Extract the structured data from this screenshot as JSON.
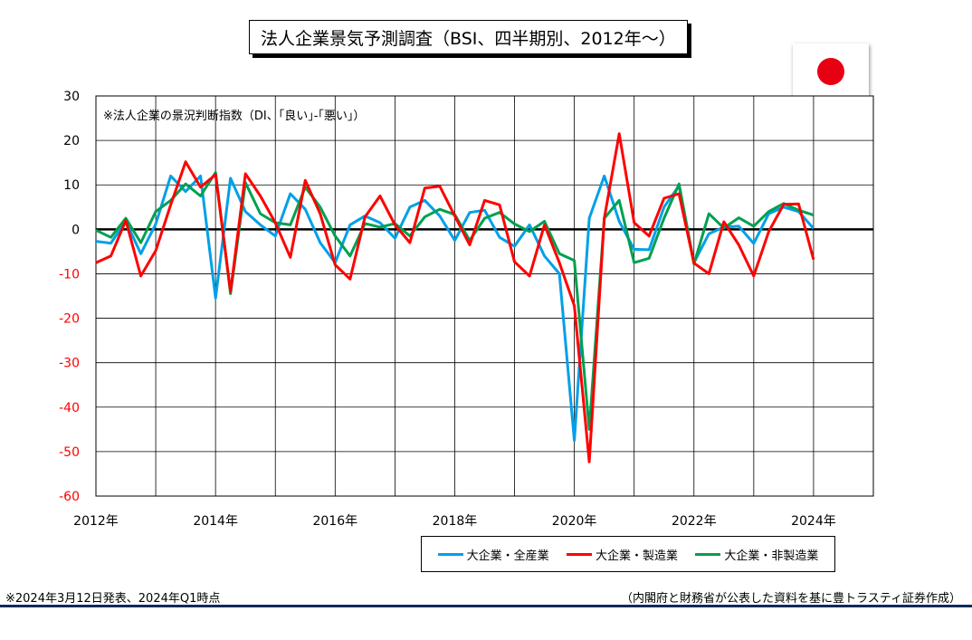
{
  "title": "法人企業景気予測調査（BSI、四半期別、2012年～）",
  "flag_icon": "japan-flag-icon",
  "footnote_left": "※2024年3月12日発表、2024年Q1時点",
  "footnote_right": "（内閣府と財務省が公表した資料を基に豊トラスティ証券作成）",
  "chart_data": {
    "type": "line",
    "annotation": "※法人企業の景況判断指数（DI、｢良い｣-｢悪い｣）",
    "ylim": [
      -60,
      30
    ],
    "yticks": [
      30,
      20,
      10,
      0,
      -10,
      -20,
      -30,
      -40,
      -50,
      -60
    ],
    "xlim": [
      2012,
      2025
    ],
    "xticks": [
      {
        "value": 2012,
        "label": "2012年"
      },
      {
        "value": 2014,
        "label": "2014年"
      },
      {
        "value": 2016,
        "label": "2016年"
      },
      {
        "value": 2018,
        "label": "2018年"
      },
      {
        "value": 2020,
        "label": "2020年"
      },
      {
        "value": 2022,
        "label": "2022年"
      },
      {
        "value": 2024,
        "label": "2024年"
      }
    ],
    "grid": true,
    "legend_position": "bottom-right",
    "x": [
      "2012Q1",
      "2012Q2",
      "2012Q3",
      "2012Q4",
      "2013Q1",
      "2013Q2",
      "2013Q3",
      "2013Q4",
      "2014Q1",
      "2014Q2",
      "2014Q3",
      "2014Q4",
      "2015Q1",
      "2015Q2",
      "2015Q3",
      "2015Q4",
      "2016Q1",
      "2016Q2",
      "2016Q3",
      "2016Q4",
      "2017Q1",
      "2017Q2",
      "2017Q3",
      "2017Q4",
      "2018Q1",
      "2018Q2",
      "2018Q3",
      "2018Q4",
      "2019Q1",
      "2019Q2",
      "2019Q3",
      "2019Q4",
      "2020Q1",
      "2020Q2",
      "2020Q3",
      "2020Q4",
      "2021Q1",
      "2021Q2",
      "2021Q3",
      "2021Q4",
      "2022Q1",
      "2022Q2",
      "2022Q3",
      "2022Q4",
      "2023Q1",
      "2023Q2",
      "2023Q3",
      "2023Q4",
      "2024Q1"
    ],
    "series": [
      {
        "name": "大企業・全産業",
        "color": "#00a0e9",
        "values": [
          -2.7,
          -3.1,
          1.8,
          -5.5,
          1.2,
          12.0,
          8.5,
          12.0,
          -15.5,
          11.5,
          4.0,
          1.0,
          -1.5,
          8.0,
          4.5,
          -3.0,
          -7.5,
          1.0,
          3.0,
          1.5,
          -2.0,
          5.0,
          6.5,
          3.0,
          -2.5,
          3.8,
          4.3,
          -1.8,
          -3.8,
          1.0,
          -6.0,
          -10.0,
          -47.5,
          2.5,
          12.0,
          1.8,
          -4.5,
          -4.6,
          5.0,
          9.8,
          -7.5,
          -1.0,
          0.5,
          0.7,
          -3.2,
          3.5,
          5.0,
          4.0,
          0.2
        ]
      },
      {
        "name": "大企業・製造業",
        "color": "#ff0000",
        "values": [
          -7.5,
          -6.0,
          2.0,
          -10.5,
          -4.8,
          5.5,
          15.2,
          9.5,
          12.3,
          -14.0,
          12.5,
          7.5,
          1.5,
          -6.3,
          11.0,
          3.5,
          -8.0,
          -11.2,
          2.8,
          7.5,
          1.0,
          -3.0,
          9.3,
          9.7,
          3.0,
          -3.5,
          6.5,
          5.5,
          -7.3,
          -10.5,
          1.0,
          -7.5,
          -17.2,
          -52.3,
          2.5,
          21.5,
          1.5,
          -1.5,
          7.0,
          8.0,
          -7.6,
          -10.0,
          1.7,
          -3.5,
          -10.5,
          -0.5,
          5.6,
          5.7,
          -6.8
        ]
      },
      {
        "name": "大企業・非製造業",
        "color": "#00a050",
        "values": [
          -0.2,
          -1.8,
          2.5,
          -3.0,
          4.0,
          6.5,
          10.2,
          7.5,
          12.8,
          -14.5,
          10.5,
          3.5,
          1.5,
          1.0,
          9.5,
          5.0,
          -1.5,
          -6.0,
          1.3,
          0.5,
          1.3,
          -1.5,
          2.8,
          4.5,
          3.3,
          -2.5,
          2.5,
          3.8,
          1.2,
          -0.5,
          1.8,
          -5.5,
          -7.0,
          -45.0,
          2.5,
          6.5,
          -7.5,
          -6.5,
          2.5,
          10.2,
          -7.8,
          3.5,
          0.3,
          2.6,
          0.7,
          4.0,
          5.8,
          4.3,
          3.2
        ]
      }
    ]
  }
}
